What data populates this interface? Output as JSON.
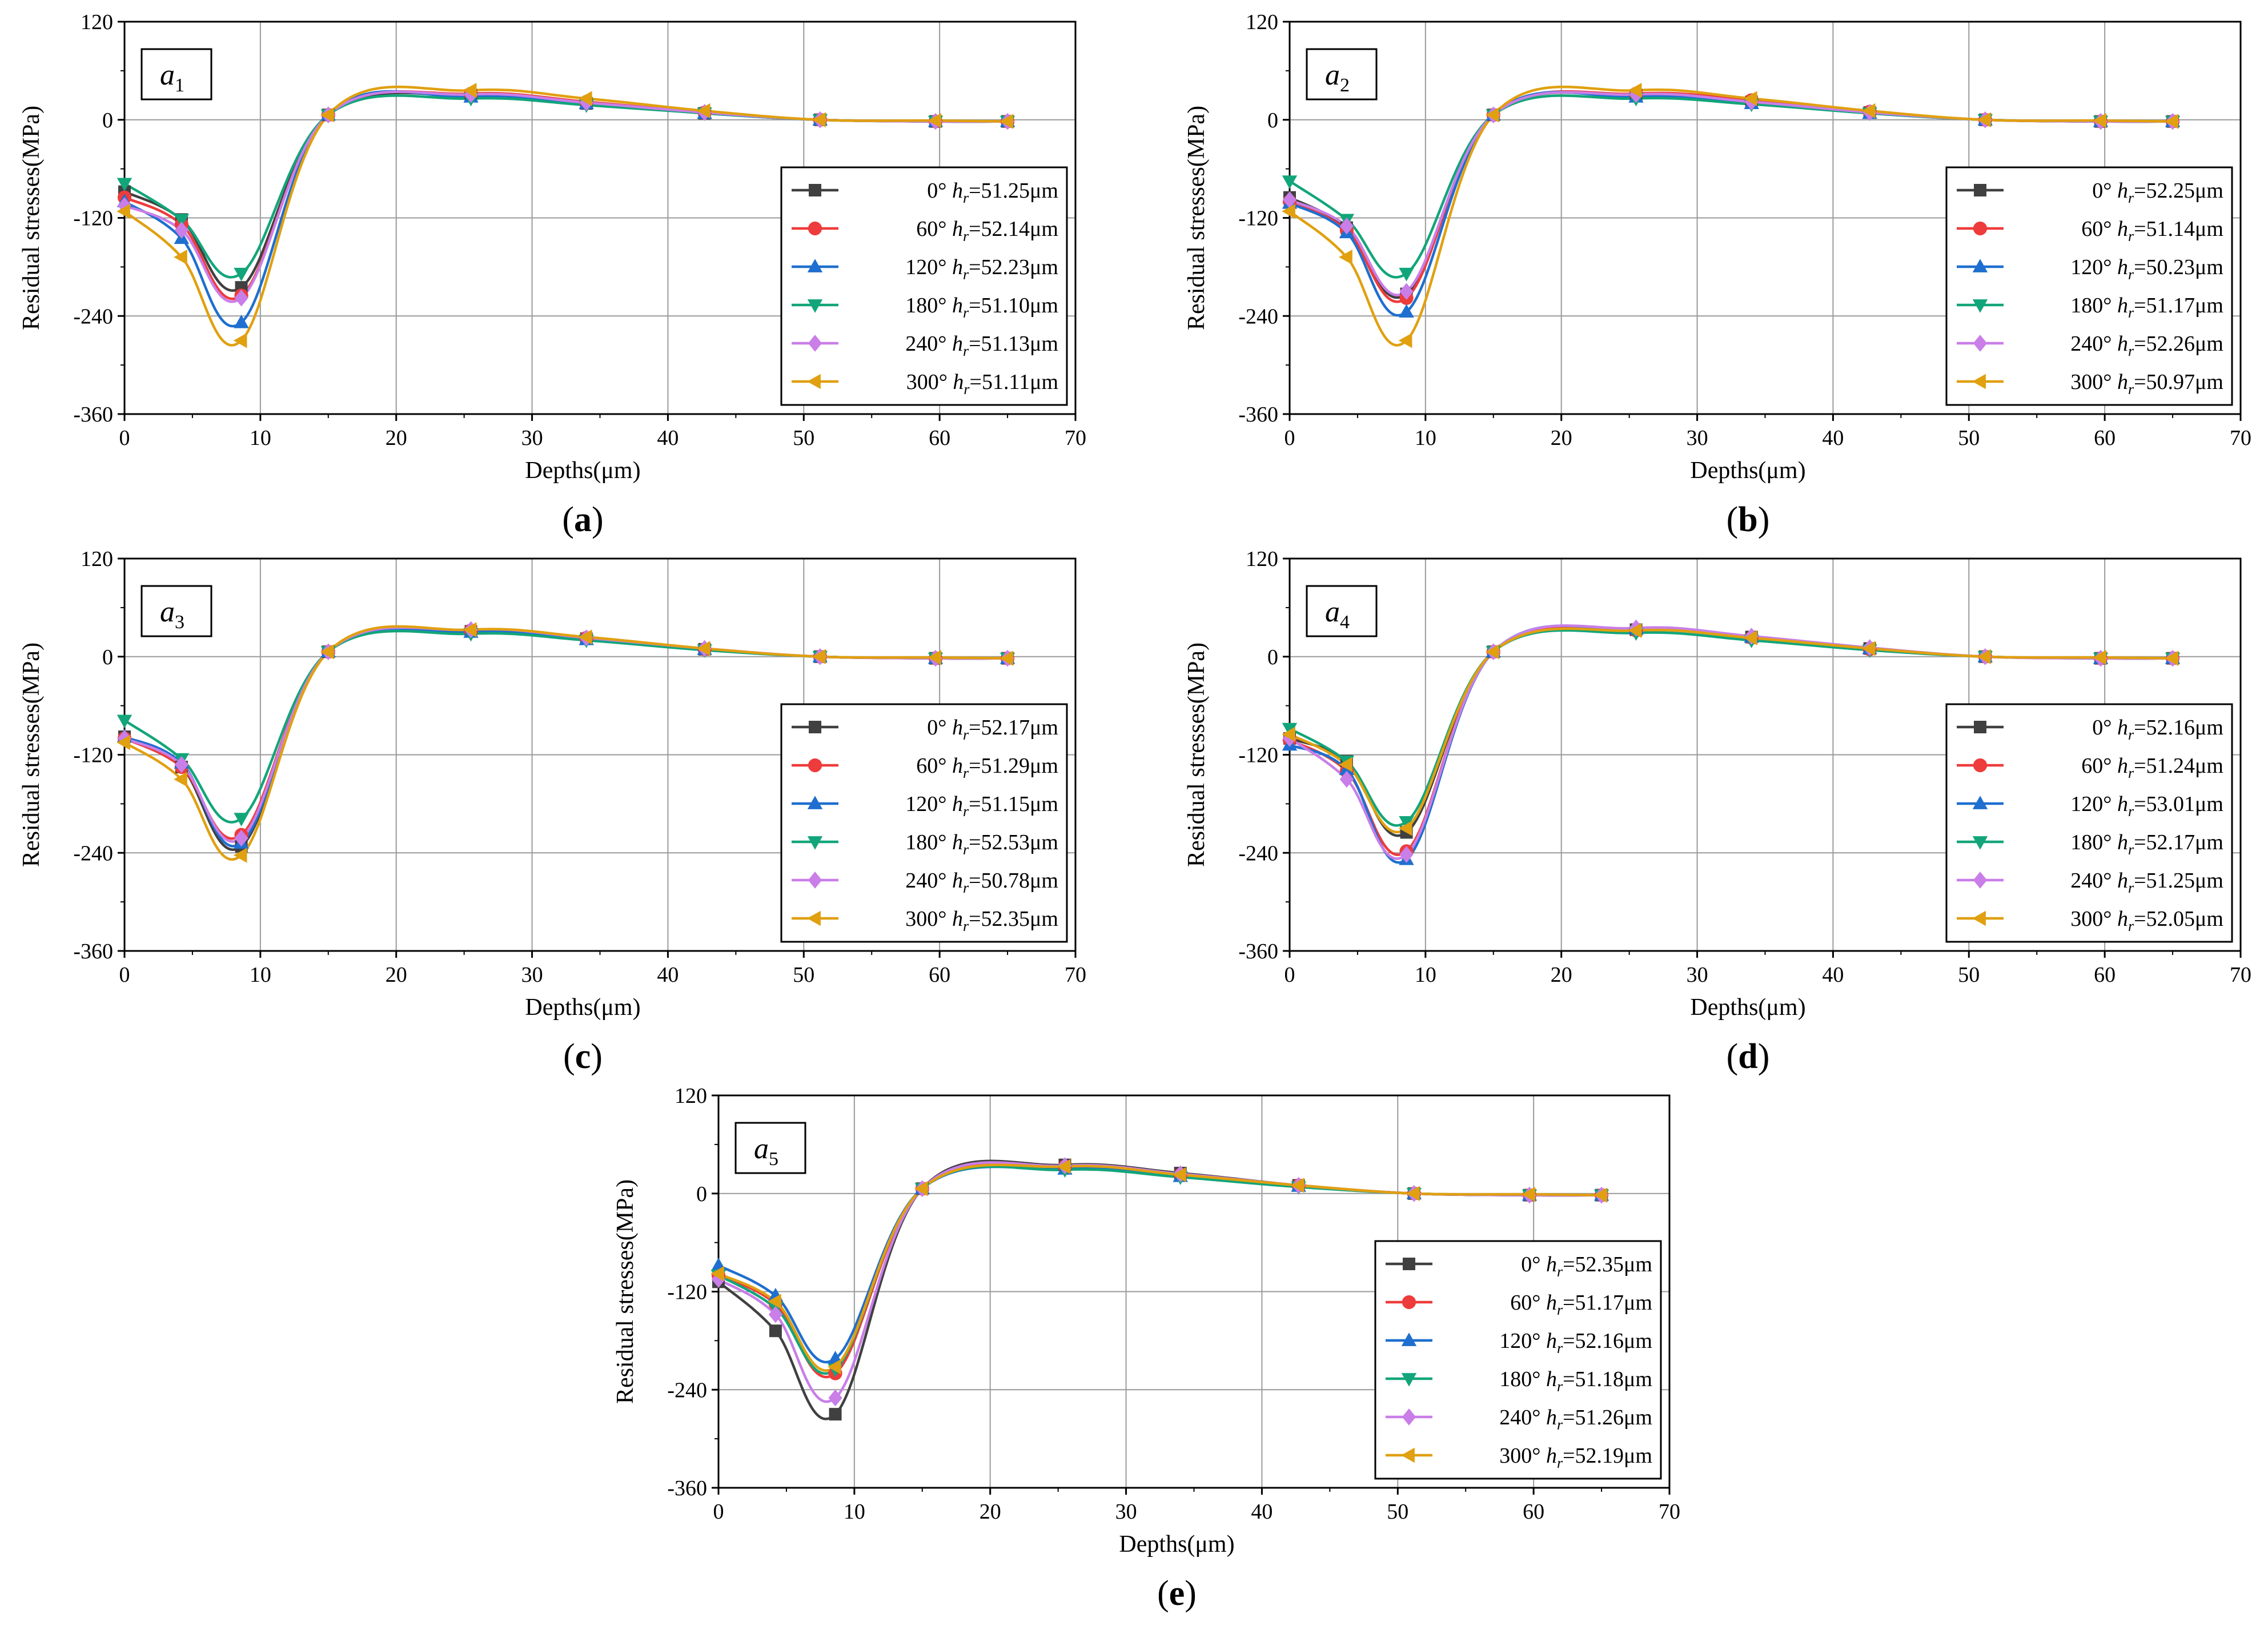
{
  "chart_data": [
    {
      "type": "line",
      "panel": "a",
      "caption": "(a)",
      "tag_letter": "a",
      "tag_sub": "1",
      "x": [
        0,
        4.2,
        8.6,
        15,
        25.5,
        34,
        42.7,
        51.2,
        59.7,
        65
      ],
      "xlabel": "Depths(μm)",
      "ylabel": "Residual stresses(MPa)",
      "xlim": [
        0,
        70
      ],
      "ylim": [
        -360,
        120
      ],
      "xticks": [
        "0",
        "10",
        "20",
        "30",
        "40",
        "50",
        "60",
        "70"
      ],
      "yticks": [
        "120",
        "0",
        "-120",
        "-240",
        "-360"
      ],
      "grid": true,
      "legend_position": "right-middle",
      "series": [
        {
          "name": "0°",
          "hr": "51.25μm",
          "values": [
            -88,
            -122,
            -205,
            6,
            30,
            20,
            8,
            0,
            -2,
            -2
          ]
        },
        {
          "name": "60°",
          "hr": "52.14μm",
          "values": [
            -95,
            -128,
            -215,
            6,
            32,
            22,
            9,
            0,
            -2,
            -2
          ]
        },
        {
          "name": "120°",
          "hr": "52.23μm",
          "values": [
            -100,
            -145,
            -248,
            6,
            28,
            20,
            8,
            0,
            -2,
            -2
          ]
        },
        {
          "name": "180°",
          "hr": "51.10μm",
          "values": [
            -78,
            -122,
            -188,
            6,
            26,
            18,
            8,
            0,
            -2,
            -2
          ]
        },
        {
          "name": "240°",
          "hr": "51.13μm",
          "values": [
            -105,
            -135,
            -218,
            6,
            31,
            21,
            9,
            0,
            -2,
            -2
          ]
        },
        {
          "name": "300°",
          "hr": "51.11μm",
          "values": [
            -112,
            -168,
            -270,
            6,
            36,
            26,
            11,
            0,
            -1,
            -2
          ]
        }
      ]
    },
    {
      "type": "line",
      "panel": "b",
      "caption": "(b)",
      "tag_letter": "a",
      "tag_sub": "2",
      "x": [
        0,
        4.2,
        8.6,
        15,
        25.5,
        34,
        42.7,
        51.2,
        59.7,
        65
      ],
      "xlabel": "Depths(μm)",
      "ylabel": "Residual stresses(MPa)",
      "xlim": [
        0,
        70
      ],
      "ylim": [
        -360,
        120
      ],
      "xticks": [
        "0",
        "10",
        "20",
        "30",
        "40",
        "50",
        "60",
        "70"
      ],
      "yticks": [
        "120",
        "0",
        "-120",
        "-240",
        "-360"
      ],
      "grid": true,
      "legend_position": "right-middle",
      "series": [
        {
          "name": "0°",
          "hr": "52.25μm",
          "values": [
            -95,
            -132,
            -213,
            6,
            30,
            22,
            9,
            0,
            -2,
            -2
          ]
        },
        {
          "name": "60°",
          "hr": "51.14μm",
          "values": [
            -100,
            -135,
            -218,
            6,
            32,
            24,
            10,
            0,
            -2,
            -2
          ]
        },
        {
          "name": "120°",
          "hr": "50.23μm",
          "values": [
            -102,
            -138,
            -235,
            6,
            28,
            20,
            8,
            0,
            -2,
            -2
          ]
        },
        {
          "name": "180°",
          "hr": "51.17μm",
          "values": [
            -75,
            -122,
            -188,
            6,
            26,
            19,
            8,
            0,
            -2,
            -2
          ]
        },
        {
          "name": "240°",
          "hr": "52.26μm",
          "values": [
            -98,
            -130,
            -210,
            6,
            31,
            22,
            9,
            0,
            -2,
            -2
          ]
        },
        {
          "name": "300°",
          "hr": "50.97μm",
          "values": [
            -112,
            -168,
            -270,
            6,
            36,
            26,
            11,
            0,
            -1,
            -2
          ]
        }
      ]
    },
    {
      "type": "line",
      "panel": "c",
      "caption": "(c)",
      "tag_letter": "a",
      "tag_sub": "3",
      "x": [
        0,
        4.2,
        8.6,
        15,
        25.5,
        34,
        42.7,
        51.2,
        59.7,
        65
      ],
      "xlabel": "Depths(μm)",
      "ylabel": "Residual stresses(MPa)",
      "xlim": [
        0,
        70
      ],
      "ylim": [
        -360,
        120
      ],
      "xticks": [
        "0",
        "10",
        "20",
        "30",
        "40",
        "50",
        "60",
        "70"
      ],
      "yticks": [
        "120",
        "0",
        "-120",
        "-240",
        "-360"
      ],
      "grid": true,
      "legend_position": "right-middle",
      "series": [
        {
          "name": "0°",
          "hr": "52.17μm",
          "values": [
            -98,
            -135,
            -232,
            6,
            31,
            22,
            9,
            0,
            -2,
            -2
          ]
        },
        {
          "name": "60°",
          "hr": "51.29μm",
          "values": [
            -100,
            -135,
            -218,
            6,
            32,
            23,
            9,
            0,
            -2,
            -2
          ]
        },
        {
          "name": "120°",
          "hr": "51.15μm",
          "values": [
            -98,
            -130,
            -228,
            6,
            30,
            21,
            9,
            0,
            -2,
            -2
          ]
        },
        {
          "name": "180°",
          "hr": "52.53μm",
          "values": [
            -78,
            -125,
            -198,
            6,
            28,
            20,
            8,
            0,
            -2,
            -2
          ]
        },
        {
          "name": "240°",
          "hr": "50.78μm",
          "values": [
            -100,
            -132,
            -222,
            6,
            33,
            23,
            10,
            0,
            -2,
            -2
          ]
        },
        {
          "name": "300°",
          "hr": "52.35μm",
          "values": [
            -105,
            -150,
            -243,
            6,
            33,
            24,
            10,
            0,
            -1,
            -2
          ]
        }
      ]
    },
    {
      "type": "line",
      "panel": "d",
      "caption": "(d)",
      "tag_letter": "a",
      "tag_sub": "4",
      "x": [
        0,
        4.2,
        8.6,
        15,
        25.5,
        34,
        42.7,
        51.2,
        59.7,
        65
      ],
      "xlabel": "Depths(μm)",
      "ylabel": "Residual stresses(MPa)",
      "xlim": [
        0,
        70
      ],
      "ylim": [
        -360,
        120
      ],
      "xticks": [
        "0",
        "10",
        "20",
        "30",
        "40",
        "50",
        "60",
        "70"
      ],
      "yticks": [
        "120",
        "0",
        "-120",
        "-240",
        "-360"
      ],
      "grid": true,
      "legend_position": "right-middle",
      "series": [
        {
          "name": "0°",
          "hr": "52.16μm",
          "values": [
            -100,
            -128,
            -215,
            6,
            33,
            24,
            10,
            0,
            -2,
            -2
          ]
        },
        {
          "name": "60°",
          "hr": "51.24μm",
          "values": [
            -102,
            -140,
            -238,
            6,
            32,
            23,
            9,
            0,
            -2,
            -2
          ]
        },
        {
          "name": "120°",
          "hr": "53.01μm",
          "values": [
            -108,
            -138,
            -248,
            6,
            34,
            24,
            10,
            0,
            -2,
            -2
          ]
        },
        {
          "name": "180°",
          "hr": "52.17μm",
          "values": [
            -88,
            -128,
            -202,
            6,
            29,
            20,
            8,
            0,
            -2,
            -2
          ]
        },
        {
          "name": "240°",
          "hr": "51.25μm",
          "values": [
            -100,
            -150,
            -242,
            6,
            35,
            25,
            11,
            0,
            -2,
            -2
          ]
        },
        {
          "name": "300°",
          "hr": "52.05μm",
          "values": [
            -95,
            -132,
            -210,
            6,
            32,
            23,
            10,
            0,
            -1,
            -2
          ]
        }
      ]
    },
    {
      "type": "line",
      "panel": "e",
      "caption": "(e)",
      "tag_letter": "a",
      "tag_sub": "5",
      "x": [
        0,
        4.2,
        8.6,
        15,
        25.5,
        34,
        42.7,
        51.2,
        59.7,
        65
      ],
      "xlabel": "Depths(μm)",
      "ylabel": "Residual stresses(MPa)",
      "xlim": [
        0,
        70
      ],
      "ylim": [
        -360,
        120
      ],
      "xticks": [
        "0",
        "10",
        "20",
        "30",
        "40",
        "50",
        "60",
        "70"
      ],
      "yticks": [
        "120",
        "0",
        "-120",
        "-240",
        "-360"
      ],
      "grid": true,
      "legend_position": "right-middle",
      "series": [
        {
          "name": "0°",
          "hr": "52.35μm",
          "values": [
            -108,
            -168,
            -270,
            6,
            35,
            25,
            10,
            0,
            -2,
            -2
          ]
        },
        {
          "name": "60°",
          "hr": "51.17μm",
          "values": [
            -100,
            -135,
            -220,
            6,
            33,
            23,
            10,
            0,
            -2,
            -2
          ]
        },
        {
          "name": "120°",
          "hr": "52.16μm",
          "values": [
            -88,
            -125,
            -202,
            6,
            30,
            21,
            9,
            0,
            -2,
            -2
          ]
        },
        {
          "name": "180°",
          "hr": "51.18μm",
          "values": [
            -100,
            -140,
            -215,
            6,
            29,
            20,
            8,
            0,
            -2,
            -2
          ]
        },
        {
          "name": "240°",
          "hr": "51.26μm",
          "values": [
            -105,
            -148,
            -250,
            6,
            34,
            24,
            10,
            0,
            -2,
            -2
          ]
        },
        {
          "name": "300°",
          "hr": "52.19μm",
          "values": [
            -98,
            -132,
            -212,
            6,
            33,
            23,
            10,
            0,
            -1,
            -2
          ]
        }
      ]
    }
  ],
  "series_styles": [
    {
      "color": "#404040",
      "marker": "square"
    },
    {
      "color": "#ee3b3b",
      "marker": "circle"
    },
    {
      "color": "#1e6fcf",
      "marker": "triangle-up"
    },
    {
      "color": "#12a57a",
      "marker": "triangle-down"
    },
    {
      "color": "#c97ee8",
      "marker": "diamond"
    },
    {
      "color": "#e0a010",
      "marker": "triangle-left"
    }
  ],
  "legend_hr_label": "h",
  "legend_hr_sub": "r"
}
